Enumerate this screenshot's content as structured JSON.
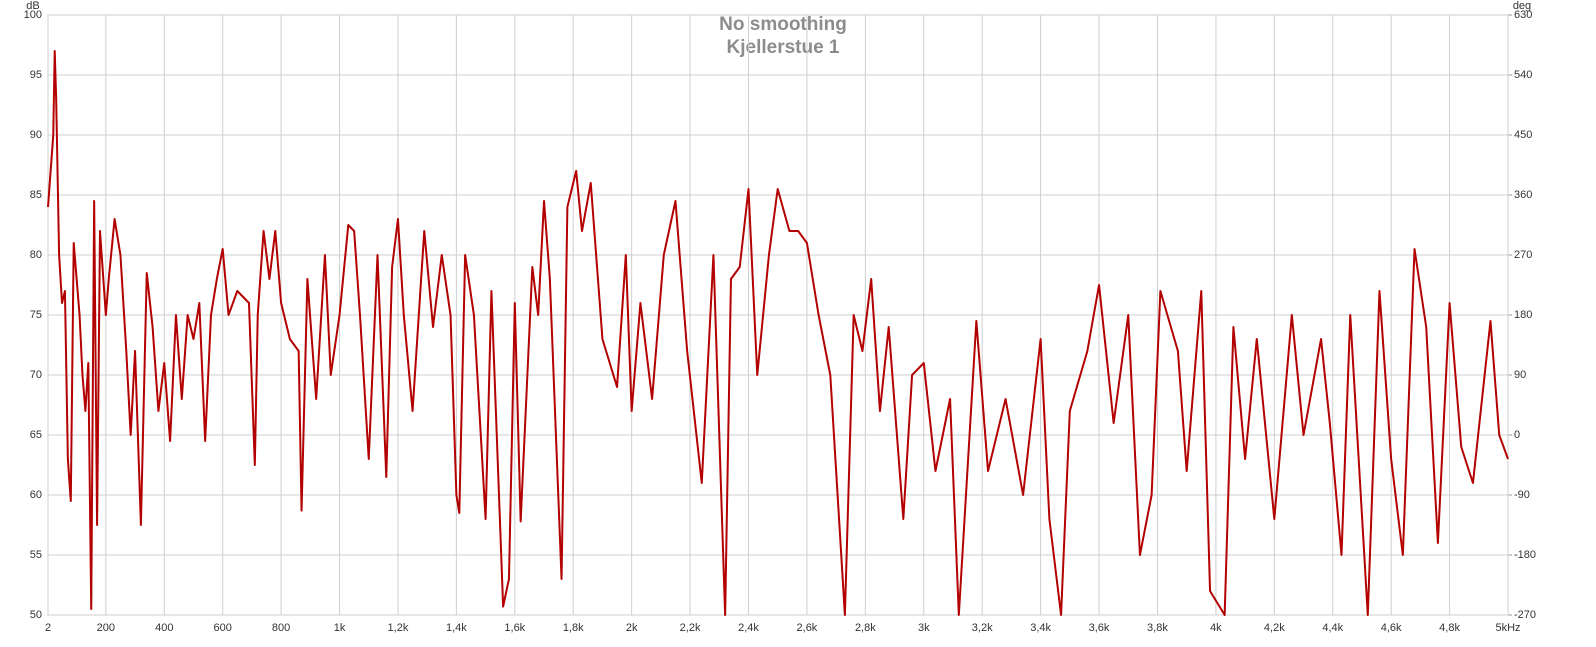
{
  "chart_data": {
    "type": "line",
    "title": "No smoothing",
    "subtitle": "Kjellerstue 1",
    "ylabel": "dB",
    "y2label": "deg",
    "x": [
      2,
      20,
      25,
      30,
      40,
      50,
      60,
      70,
      80,
      90,
      110,
      120,
      130,
      140,
      150,
      160,
      170,
      180,
      200,
      210,
      230,
      250,
      270,
      285,
      300,
      320,
      340,
      360,
      380,
      400,
      420,
      440,
      460,
      480,
      500,
      520,
      540,
      560,
      580,
      600,
      620,
      650,
      690,
      710,
      720,
      740,
      760,
      780,
      800,
      830,
      860,
      870,
      890,
      920,
      950,
      970,
      1000,
      1030,
      1050,
      1070,
      1100,
      1130,
      1160,
      1180,
      1200,
      1220,
      1250,
      1290,
      1320,
      1350,
      1380,
      1400,
      1410,
      1430,
      1460,
      1500,
      1520,
      1560,
      1580,
      1600,
      1620,
      1660,
      1680,
      1700,
      1720,
      1760,
      1780,
      1810,
      1830,
      1860,
      1900,
      1950,
      1980,
      2000,
      2030,
      2070,
      2110,
      2150,
      2190,
      2240,
      2280,
      2320,
      2340,
      2370,
      2400,
      2430,
      2470,
      2500,
      2540,
      2570,
      2600,
      2640,
      2680,
      2700,
      2730,
      2760,
      2790,
      2820,
      2850,
      2880,
      2930,
      2960,
      3000,
      3040,
      3090,
      3120,
      3180,
      3220,
      3280,
      3340,
      3400,
      3430,
      3470,
      3500,
      3560,
      3600,
      3650,
      3700,
      3740,
      3780,
      3810,
      3870,
      3900,
      3950,
      3980,
      4030,
      4060,
      4100,
      4140,
      4200,
      4260,
      4300,
      4360,
      4390,
      4430,
      4460,
      4520,
      4560,
      4600,
      4640,
      4680,
      4720,
      4760,
      4800,
      4840,
      4880,
      4940,
      4970,
      5000
    ],
    "series": [
      {
        "name": "Kjellerstue 1",
        "color": "#b30000",
        "values": [
          84,
          90,
          97,
          93,
          80,
          76,
          77,
          63,
          59.5,
          81,
          75,
          70,
          67,
          71,
          50.5,
          84.5,
          57.5,
          82,
          75,
          78,
          83,
          80,
          72,
          65,
          72,
          57.5,
          78.5,
          74,
          67,
          71,
          64.5,
          75,
          68,
          75,
          73,
          76,
          64.5,
          75,
          78,
          80.5,
          75,
          77,
          76,
          62.5,
          75,
          82,
          78,
          82,
          76,
          73,
          72,
          58.7,
          78,
          68,
          80,
          70,
          75,
          82.5,
          82,
          75,
          63,
          80,
          61.5,
          79,
          83,
          75,
          67,
          82,
          74,
          80,
          75,
          60,
          58.5,
          80,
          75,
          58,
          77,
          50.7,
          53,
          76,
          57.8,
          79,
          75,
          84.5,
          78,
          53,
          84,
          87,
          82,
          86,
          73,
          69,
          80,
          67,
          76,
          68,
          80,
          84.5,
          72,
          61,
          80,
          50,
          78,
          79,
          85.5,
          70,
          80,
          85.5,
          82,
          82,
          81,
          75,
          70,
          62,
          50,
          75,
          72,
          78,
          67,
          74,
          58,
          70,
          71,
          62,
          68,
          50,
          74.5,
          62,
          68,
          60,
          73,
          58,
          50,
          67,
          72,
          77.5,
          66,
          75,
          55,
          60,
          77,
          72,
          62,
          77,
          52,
          50,
          74,
          63,
          73,
          58,
          75,
          65,
          73,
          66,
          55,
          75,
          50,
          77,
          63,
          55,
          80.5,
          74,
          56,
          76,
          64,
          61,
          74.5,
          65,
          63
        ]
      }
    ],
    "xlim": [
      2,
      5000
    ],
    "xticks": [
      2,
      200,
      400,
      600,
      800,
      {
        "value": 1000,
        "label": "1k"
      },
      {
        "value": 1200,
        "label": "1,2k"
      },
      {
        "value": 1400,
        "label": "1,4k"
      },
      {
        "value": 1600,
        "label": "1,6k"
      },
      {
        "value": 1800,
        "label": "1,8k"
      },
      {
        "value": 2000,
        "label": "2k"
      },
      {
        "value": 2200,
        "label": "2,2k"
      },
      {
        "value": 2400,
        "label": "2,4k"
      },
      {
        "value": 2600,
        "label": "2,6k"
      },
      {
        "value": 2800,
        "label": "2,8k"
      },
      {
        "value": 3000,
        "label": "3k"
      },
      {
        "value": 3200,
        "label": "3,2k"
      },
      {
        "value": 3400,
        "label": "3,4k"
      },
      {
        "value": 3600,
        "label": "3,6k"
      },
      {
        "value": 3800,
        "label": "3,8k"
      },
      {
        "value": 4000,
        "label": "4k"
      },
      {
        "value": 4200,
        "label": "4,2k"
      },
      {
        "value": 4400,
        "label": "4,4k"
      },
      {
        "value": 4600,
        "label": "4,6k"
      },
      {
        "value": 4800,
        "label": "4,8k"
      },
      {
        "value": 5000,
        "label": "5kHz"
      }
    ],
    "ylim": [
      50,
      100
    ],
    "yticks": [
      50,
      55,
      60,
      65,
      70,
      75,
      80,
      85,
      90,
      95,
      100
    ],
    "y2lim": [
      -270,
      630
    ],
    "y2ticks": [
      -270,
      -180,
      -90,
      0,
      90,
      180,
      270,
      360,
      450,
      540,
      630
    ],
    "grid": true
  }
}
